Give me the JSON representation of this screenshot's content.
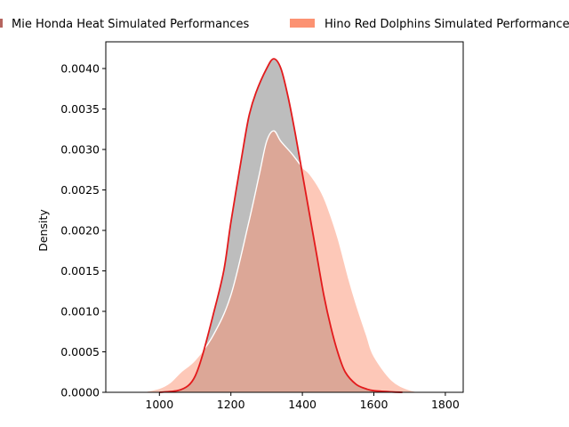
{
  "chart_data": {
    "type": "area",
    "xlabel": "",
    "ylabel": "Density",
    "xlim": [
      850,
      1850
    ],
    "ylim": [
      0,
      0.00433
    ],
    "xticks": [
      1000,
      1200,
      1400,
      1600,
      1800
    ],
    "yticks": [
      0.0,
      0.0005,
      0.001,
      0.0015,
      0.002,
      0.0025,
      0.003,
      0.0035,
      0.004
    ],
    "ytick_labels": [
      "0.0000",
      "0.0005",
      "0.0010",
      "0.0015",
      "0.0020",
      "0.0025",
      "0.0030",
      "0.0035",
      "0.0040"
    ],
    "legend_position": "top",
    "series": [
      {
        "name": "Mie Honda Heat Simulated Performances",
        "fill_color": "#bdbdbd",
        "edge_color": "#e31a1c",
        "legend_color": "#b5655f",
        "x": [
          1000,
          1050,
          1080,
          1100,
          1120,
          1150,
          1180,
          1200,
          1230,
          1250,
          1270,
          1300,
          1320,
          1340,
          1360,
          1380,
          1400,
          1420,
          1440,
          1460,
          1480,
          1500,
          1520,
          1550,
          1580,
          1600,
          1650,
          1680
        ],
        "y": [
          0.0,
          2e-05,
          8e-05,
          0.0002,
          0.00045,
          0.00095,
          0.0015,
          0.0021,
          0.0029,
          0.0034,
          0.0037,
          0.004,
          0.00412,
          0.004,
          0.00365,
          0.0032,
          0.0027,
          0.0022,
          0.0017,
          0.0012,
          0.0008,
          0.00048,
          0.00025,
          0.0001,
          4e-05,
          2e-05,
          5e-06,
          0.0
        ]
      },
      {
        "name": "Hino Red Dolphins Simulated Performances",
        "fill_color": "#fc9272",
        "edge_color": "#ffffff",
        "legend_color": "#fc9272",
        "x": [
          950,
          1000,
          1030,
          1060,
          1100,
          1150,
          1200,
          1250,
          1280,
          1300,
          1320,
          1340,
          1370,
          1400,
          1420,
          1450,
          1470,
          1500,
          1530,
          1550,
          1580,
          1600,
          1650,
          1700,
          1740
        ],
        "y": [
          0.0,
          5e-05,
          0.00012,
          0.00025,
          0.0004,
          0.0007,
          0.0012,
          0.0021,
          0.0027,
          0.0031,
          0.00323,
          0.0031,
          0.00295,
          0.00278,
          0.0027,
          0.0025,
          0.0023,
          0.0019,
          0.0014,
          0.0011,
          0.0007,
          0.00045,
          0.00015,
          3e-05,
          0.0
        ]
      }
    ]
  }
}
